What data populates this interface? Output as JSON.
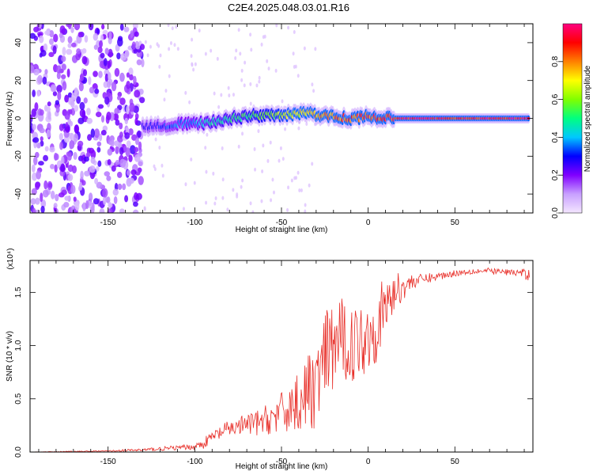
{
  "title": "C2E4.2025.048.03.01.R16",
  "chart_data": [
    {
      "type": "heatmap",
      "name": "spectrogram",
      "xlabel": "Height of straight line (km)",
      "ylabel": "Frequency (Hz)",
      "xlim": [
        -195,
        95
      ],
      "ylim": [
        -50,
        50
      ],
      "xticks": [
        -150,
        -100,
        -50,
        0,
        50
      ],
      "yticks": [
        -40,
        -20,
        0,
        20,
        40
      ],
      "colorbar": {
        "label": "Normalized spectral amplitude",
        "range": [
          0,
          1
        ],
        "ticks": [
          0.0,
          0.2,
          0.4,
          0.6,
          0.8
        ],
        "tick_labels": [
          "0.0",
          "0.2",
          "0.4",
          "0.6",
          "0.8"
        ],
        "colormap": [
          "#f4e6ff",
          "#c8a0ff",
          "#8000ff",
          "#0000ff",
          "#00c8ff",
          "#00ff80",
          "#80ff00",
          "#ffff00",
          "#ff8000",
          "#ff0000",
          "#ff0080"
        ]
      },
      "ridge": {
        "x": [
          -130,
          -120,
          -110,
          -100,
          -90,
          -80,
          -70,
          -60,
          -50,
          -40,
          -30,
          -20,
          -10,
          0,
          10,
          15,
          20,
          40,
          60,
          80,
          93
        ],
        "freq": [
          -4,
          -4,
          -3,
          -3,
          -2,
          0,
          1,
          2,
          1,
          3,
          2,
          1,
          0,
          1,
          0,
          0,
          0,
          0,
          0,
          0,
          0
        ],
        "amplitude": [
          0.28,
          0.32,
          0.38,
          0.42,
          0.48,
          0.5,
          0.55,
          0.6,
          0.65,
          0.72,
          0.78,
          0.85,
          0.88,
          0.9,
          0.92,
          0.95,
          0.97,
          0.97,
          0.96,
          0.96,
          0.96
        ]
      },
      "noise_region": {
        "x": [
          -195,
          -130
        ],
        "freq": [
          -50,
          50
        ],
        "amplitude": 0.18
      }
    },
    {
      "type": "line",
      "name": "snr",
      "xlabel": "Height of straight line (km)",
      "ylabel": "SNR (10 * v/v)",
      "y_multiplier": "(x10⁴)",
      "xlim": [
        -195,
        95
      ],
      "ylim": [
        0,
        1.8
      ],
      "xticks": [
        -150,
        -100,
        -50,
        0,
        50
      ],
      "yticks": [
        0.0,
        0.5,
        1.0,
        1.5
      ],
      "ytick_labels": [
        "0.0",
        "0.5",
        "1.0",
        "1.5"
      ],
      "color": "#e8302a",
      "series": [
        {
          "x": [
            -195,
            -170,
            -150,
            -140,
            -130,
            -120,
            -110,
            -100,
            -95,
            -90,
            -85,
            -80,
            -75,
            -70,
            -65,
            -60,
            -55,
            -50,
            -45,
            -40,
            -35,
            -30,
            -25,
            -20,
            -15,
            -10,
            -5,
            0,
            5,
            10,
            15,
            20,
            25,
            30,
            40,
            50,
            60,
            70,
            80,
            90,
            93
          ],
          "y": [
            0.0,
            0.005,
            0.01,
            0.015,
            0.02,
            0.03,
            0.04,
            0.05,
            0.08,
            0.14,
            0.18,
            0.22,
            0.24,
            0.26,
            0.27,
            0.29,
            0.33,
            0.36,
            0.42,
            0.48,
            0.55,
            0.62,
            0.85,
            1.0,
            1.05,
            1.0,
            1.05,
            1.1,
            1.2,
            1.35,
            1.5,
            1.55,
            1.6,
            1.62,
            1.65,
            1.68,
            1.7,
            1.7,
            1.69,
            1.68,
            1.65
          ],
          "noise": [
            0.0,
            0.005,
            0.005,
            0.01,
            0.015,
            0.02,
            0.02,
            0.03,
            0.05,
            0.06,
            0.07,
            0.08,
            0.09,
            0.1,
            0.12,
            0.14,
            0.16,
            0.2,
            0.25,
            0.3,
            0.35,
            0.4,
            0.45,
            0.45,
            0.4,
            0.35,
            0.35,
            0.35,
            0.35,
            0.3,
            0.2,
            0.12,
            0.08,
            0.05,
            0.04,
            0.03,
            0.03,
            0.03,
            0.03,
            0.04,
            0.08
          ]
        }
      ]
    }
  ]
}
